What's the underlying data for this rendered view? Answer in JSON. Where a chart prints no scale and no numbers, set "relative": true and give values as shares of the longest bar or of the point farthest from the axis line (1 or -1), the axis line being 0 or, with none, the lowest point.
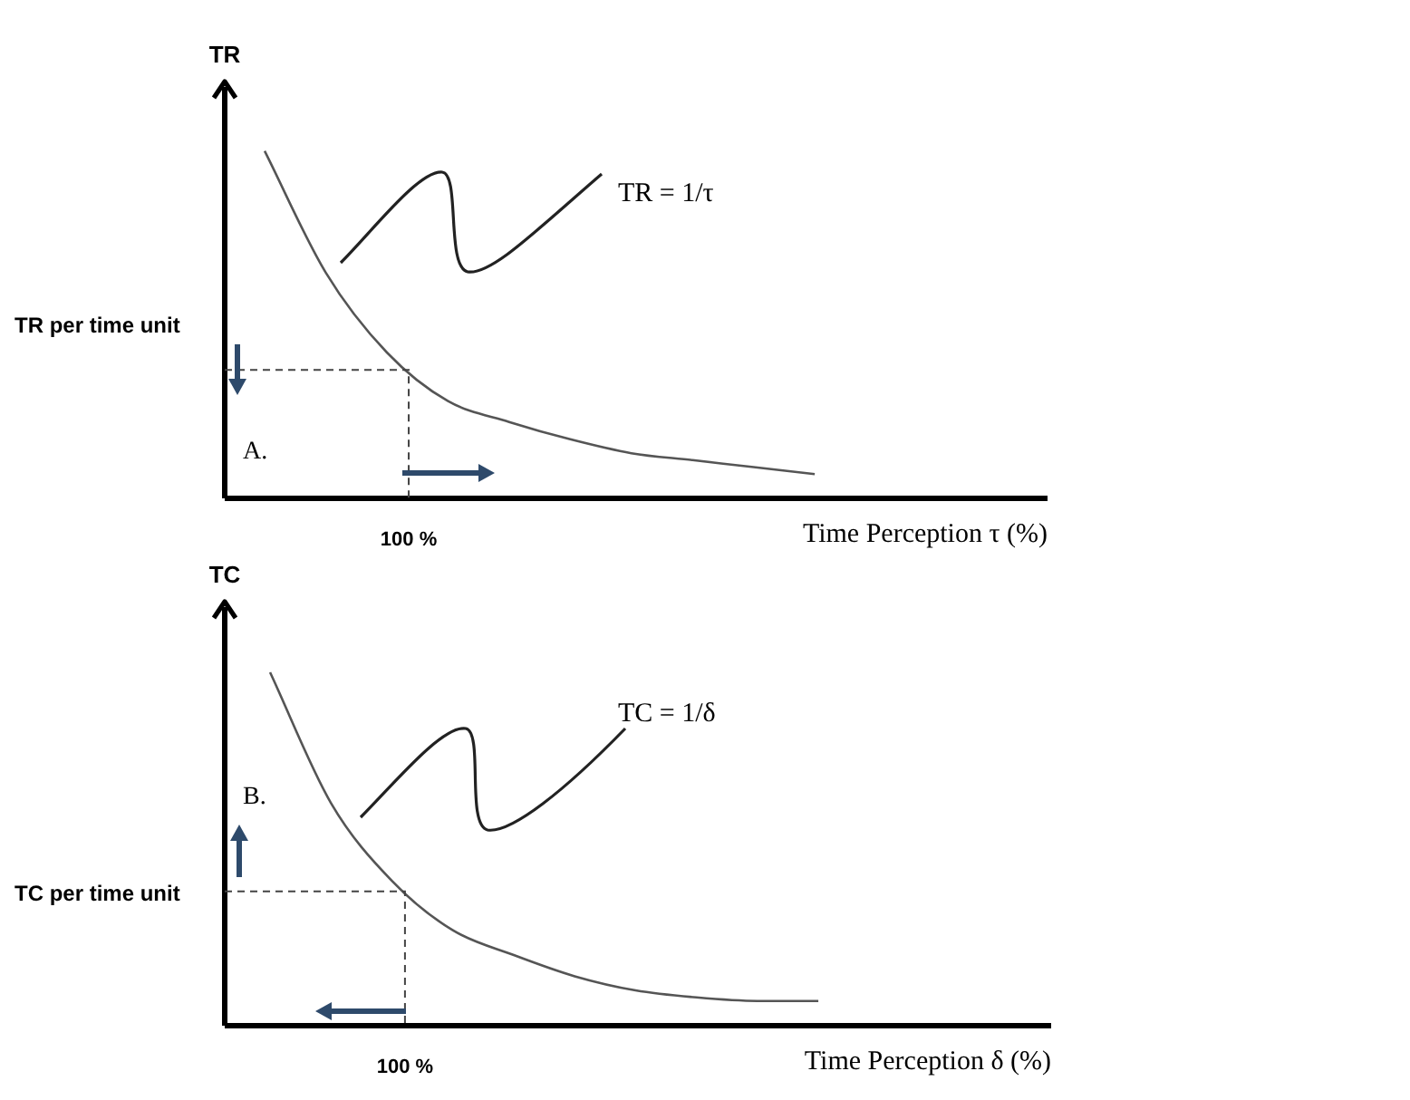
{
  "chart_data": [
    {
      "type": "line",
      "xlabel": "Time Perception τ (%)",
      "ylabel": "TR",
      "relative": true,
      "color": "#555555",
      "categories": [
        null,
        null,
        null,
        null,
        null,
        null,
        null,
        null,
        null,
        null
      ],
      "values": [
        1,
        0.65,
        0.42,
        0.28,
        0.22,
        0.17,
        0.13,
        0.11,
        0.09,
        0.07
      ],
      "ref_lines": [
        {
          "axis": "y",
          "value": 0.37,
          "line_style": "dashed"
        }
      ],
      "annotations": [
        "TR per time unit",
        "A.",
        "TR = 1/τ",
        "100 %"
      ],
      "legend": false
    },
    {
      "type": "line",
      "xlabel": "Time Perception δ (%)",
      "ylabel": "TC",
      "relative": true,
      "color": "#555555",
      "categories": [
        null,
        null,
        null,
        null,
        null,
        null,
        null,
        null,
        null,
        null
      ],
      "values": [
        1,
        0.63,
        0.41,
        0.27,
        0.2,
        0.14,
        0.1,
        0.08,
        0.07,
        0.07
      ],
      "ref_lines": [
        {
          "axis": "y",
          "value": 0.38,
          "line_style": "dashed"
        }
      ],
      "annotations": [
        "TC per time unit",
        "B.",
        "TC = 1/δ",
        "100 %"
      ],
      "legend": false
    }
  ]
}
